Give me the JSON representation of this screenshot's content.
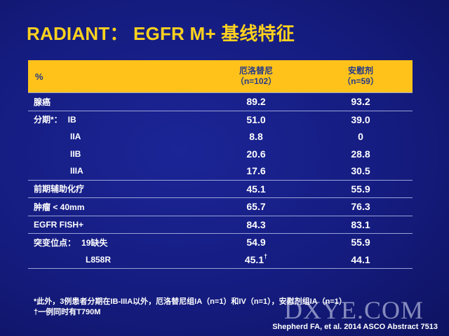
{
  "title": "RADIANT： EGFR M+ 基线特征",
  "table": {
    "header": {
      "label": "%",
      "col1_line1": "厄洛替尼",
      "col1_line2": "（n=102）",
      "col2_line1": "安慰剂",
      "col2_line2": "（n=59）"
    },
    "rows": [
      {
        "label": "腺癌",
        "v1": "89.2",
        "v2": "93.2"
      },
      {
        "label": "分期*：",
        "sublabel": "IB",
        "v1": "51.0",
        "v2": "39.0"
      },
      {
        "label": "IIA",
        "v1": "8.8",
        "v2": "0"
      },
      {
        "label": "IIB",
        "v1": "20.6",
        "v2": "28.8"
      },
      {
        "label": "IIIA",
        "v1": "17.6",
        "v2": "30.5"
      },
      {
        "label": "前期辅助化疗",
        "v1": "45.1",
        "v2": "55.9"
      },
      {
        "label": "肿瘤 < 40mm",
        "v1": "65.7",
        "v2": "76.3"
      },
      {
        "label": "EGFR FISH+",
        "v1": "84.3",
        "v2": "83.1"
      },
      {
        "label": "突变位点：",
        "sublabel": "19缺失",
        "v1": "54.9",
        "v2": "55.9"
      },
      {
        "label": "L858R",
        "v1": "45.1",
        "v1_mark": "†",
        "v2": "44.1"
      }
    ]
  },
  "footnote": {
    "line1": "*此外，3例患者分期在IB-IIIA以外，厄洛替尼组IA（n=1）和IV（n=1），安慰剂组IA（n=1）",
    "line2": "†一例同时有T790M"
  },
  "watermark": "DXYE.COM",
  "citation": "Shepherd FA, et al. 2014 ASCO Abstract 7513"
}
